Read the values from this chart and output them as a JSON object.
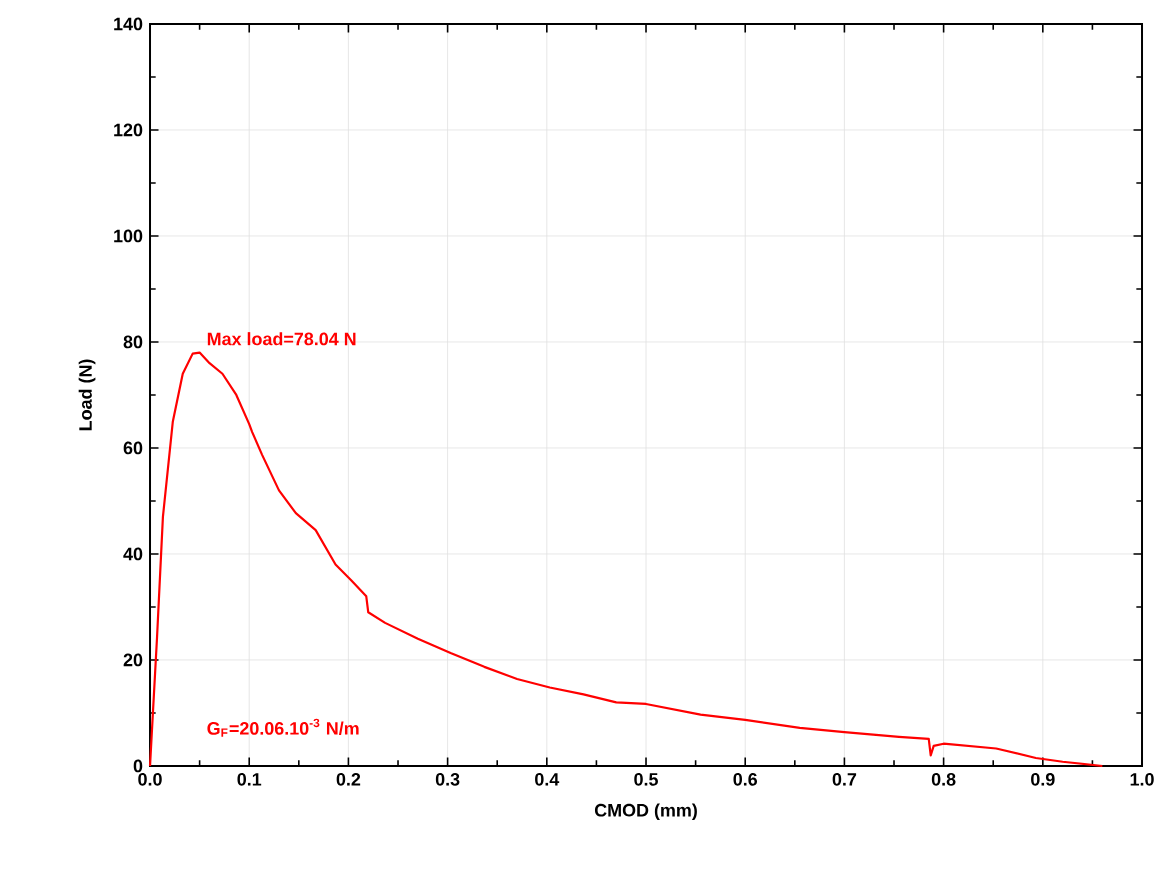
{
  "chart_data": {
    "type": "line",
    "xlabel": "CMOD  (mm)",
    "ylabel": "Load  (N)",
    "xlim": [
      0,
      1
    ],
    "ylim": [
      0,
      140
    ],
    "xticks": [
      {
        "value": 0,
        "label": "0.0"
      },
      {
        "value": 0.1,
        "label": "0.1"
      },
      {
        "value": 0.2,
        "label": "0.2"
      },
      {
        "value": 0.3,
        "label": "0.3"
      },
      {
        "value": 0.4,
        "label": "0.4"
      },
      {
        "value": 0.5,
        "label": "0.5"
      },
      {
        "value": 0.6,
        "label": "0.6"
      },
      {
        "value": 0.7,
        "label": "0.7"
      },
      {
        "value": 0.8,
        "label": "0.8"
      },
      {
        "value": 0.9,
        "label": "0.9"
      },
      {
        "value": 1,
        "label": "1.0"
      }
    ],
    "yticks": [
      0,
      20,
      40,
      60,
      80,
      100,
      120,
      140
    ],
    "grid": true,
    "marker": "none",
    "line_style": "solid",
    "series": [
      {
        "color": "#ff0000",
        "x": [
          0,
          0.007,
          0.013,
          0.023,
          0.033,
          0.043,
          0.05,
          0.06,
          0.073,
          0.087,
          0.1,
          0.103,
          0.113,
          0.13,
          0.147,
          0.167,
          0.187,
          0.203,
          0.218,
          0.22,
          0.237,
          0.27,
          0.303,
          0.337,
          0.37,
          0.403,
          0.437,
          0.47,
          0.5,
          0.555,
          0.6,
          0.655,
          0.7,
          0.755,
          0.785,
          0.787,
          0.79,
          0.8,
          0.853,
          0.893,
          0.92,
          0.96
        ],
        "values": [
          0,
          24,
          47,
          65,
          74,
          77.8,
          78,
          76,
          74,
          70,
          64.5,
          63,
          58.7,
          52,
          47.7,
          44.5,
          38,
          35,
          32,
          29,
          27,
          24,
          21.3,
          18.7,
          16.4,
          14.8,
          13.5,
          12,
          11.7,
          9.7,
          8.7,
          7.2,
          6.4,
          5.5,
          5.1,
          2,
          3.8,
          4.2,
          3.3,
          1.5,
          0.8,
          0
        ]
      }
    ],
    "annotations": [
      {
        "text": "Max load=78.04 N",
        "x": 0.05,
        "y": 78.04
      },
      "G$_{F}$=20.06.10$^{-3}$ N/m"
    ]
  }
}
